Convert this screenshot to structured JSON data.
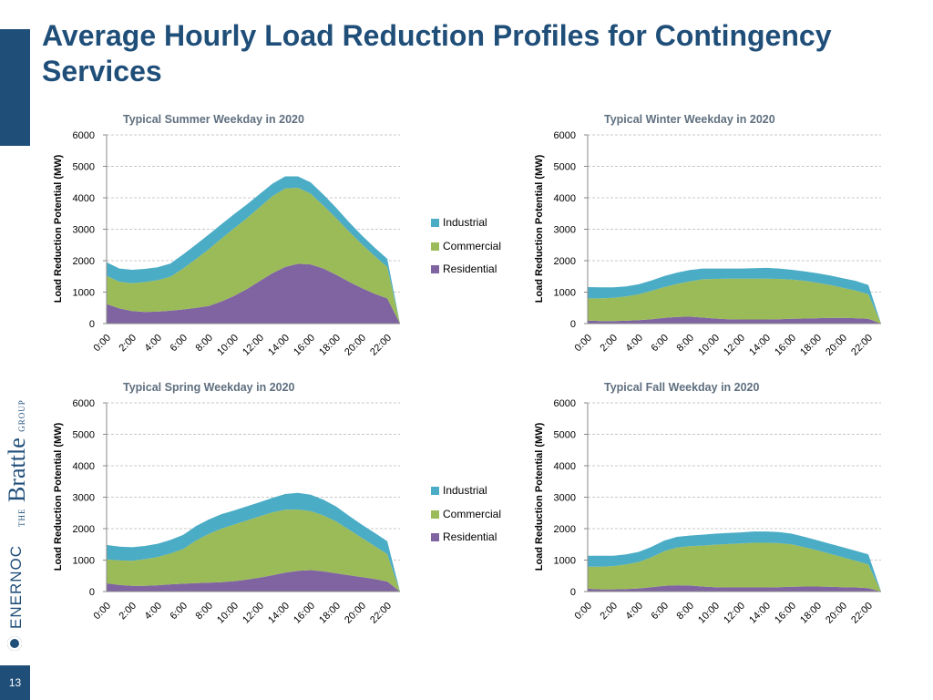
{
  "title": "Average Hourly Load Reduction Profiles for Contingency Services",
  "page_number": "13",
  "logos": {
    "brattle_the": "THE",
    "brattle": "Brattle",
    "brattle_group": "GROUP",
    "enernoc": "ENERNOC"
  },
  "colors": {
    "Industrial": "#4bacc6",
    "Commercial": "#9bbb59",
    "Residential": "#8064a2",
    "accent": "#1f4e79"
  },
  "legend": [
    "Industrial",
    "Commercial",
    "Residential"
  ],
  "chart_data": [
    {
      "type": "area",
      "stacked": true,
      "title": "Typical Summer Weekday in 2020",
      "ylabel": "Load Reduction Potential (MW)",
      "ylim": [
        0,
        6000
      ],
      "yticks": [
        0,
        1000,
        2000,
        3000,
        4000,
        5000,
        6000
      ],
      "x": [
        "0:00",
        "1:00",
        "2:00",
        "3:00",
        "4:00",
        "5:00",
        "6:00",
        "7:00",
        "8:00",
        "9:00",
        "10:00",
        "11:00",
        "12:00",
        "13:00",
        "14:00",
        "15:00",
        "16:00",
        "17:00",
        "18:00",
        "19:00",
        "20:00",
        "21:00",
        "22:00",
        "23:00"
      ],
      "xtick_labels": [
        "0:00",
        "2:00",
        "4:00",
        "6:00",
        "8:00",
        "10:00",
        "12:00",
        "14:00",
        "16:00",
        "18:00",
        "20:00",
        "22:00"
      ],
      "grid": true,
      "legend": "right",
      "series": [
        {
          "name": "Residential",
          "values": [
            620,
            480,
            400,
            370,
            380,
            410,
            450,
            500,
            560,
            700,
            880,
            1100,
            1350,
            1600,
            1800,
            1900,
            1880,
            1750,
            1550,
            1330,
            1130,
            950,
            800,
            0
          ]
        },
        {
          "name": "Commercial",
          "values": [
            900,
            850,
            880,
            950,
            1000,
            1080,
            1300,
            1550,
            1800,
            2000,
            2150,
            2250,
            2350,
            2450,
            2500,
            2420,
            2250,
            2000,
            1800,
            1600,
            1400,
            1200,
            1000,
            0
          ]
        },
        {
          "name": "Industrial",
          "values": [
            430,
            420,
            430,
            420,
            410,
            420,
            450,
            460,
            470,
            460,
            450,
            440,
            420,
            400,
            380,
            360,
            360,
            350,
            330,
            300,
            280,
            270,
            260,
            0
          ]
        }
      ]
    },
    {
      "type": "area",
      "stacked": true,
      "title": "Typical Winter Weekday in 2020",
      "ylabel": "Load Reduction Potential (MW)",
      "ylim": [
        0,
        6000
      ],
      "yticks": [
        0,
        1000,
        2000,
        3000,
        4000,
        5000,
        6000
      ],
      "x": [
        "0:00",
        "1:00",
        "2:00",
        "3:00",
        "4:00",
        "5:00",
        "6:00",
        "7:00",
        "8:00",
        "9:00",
        "10:00",
        "11:00",
        "12:00",
        "13:00",
        "14:00",
        "15:00",
        "16:00",
        "17:00",
        "18:00",
        "19:00",
        "20:00",
        "21:00",
        "22:00",
        "23:00"
      ],
      "xtick_labels": [
        "0:00",
        "2:00",
        "4:00",
        "6:00",
        "8:00",
        "10:00",
        "12:00",
        "14:00",
        "16:00",
        "18:00",
        "20:00",
        "22:00"
      ],
      "grid": true,
      "series": [
        {
          "name": "Residential",
          "values": [
            100,
            80,
            80,
            90,
            110,
            140,
            180,
            210,
            220,
            190,
            160,
            140,
            130,
            130,
            130,
            140,
            150,
            160,
            170,
            180,
            180,
            170,
            150,
            0
          ]
        },
        {
          "name": "Commercial",
          "values": [
            700,
            720,
            740,
            770,
            820,
            900,
            980,
            1050,
            1120,
            1220,
            1260,
            1290,
            1300,
            1300,
            1300,
            1280,
            1250,
            1200,
            1130,
            1050,
            960,
            880,
            780,
            0
          ]
        },
        {
          "name": "Industrial",
          "values": [
            360,
            350,
            330,
            320,
            320,
            330,
            350,
            360,
            360,
            340,
            330,
            320,
            320,
            330,
            340,
            330,
            310,
            300,
            300,
            300,
            300,
            310,
            300,
            0
          ]
        }
      ]
    },
    {
      "type": "area",
      "stacked": true,
      "title": "Typical Spring Weekday in 2020",
      "ylabel": "Load Reduction Potential (MW)",
      "ylim": [
        0,
        6000
      ],
      "yticks": [
        0,
        1000,
        2000,
        3000,
        4000,
        5000,
        6000
      ],
      "x": [
        "0:00",
        "1:00",
        "2:00",
        "3:00",
        "4:00",
        "5:00",
        "6:00",
        "7:00",
        "8:00",
        "9:00",
        "10:00",
        "11:00",
        "12:00",
        "13:00",
        "14:00",
        "15:00",
        "16:00",
        "17:00",
        "18:00",
        "19:00",
        "20:00",
        "21:00",
        "22:00",
        "23:00"
      ],
      "xtick_labels": [
        "0:00",
        "2:00",
        "4:00",
        "6:00",
        "8:00",
        "10:00",
        "12:00",
        "14:00",
        "16:00",
        "18:00",
        "20:00",
        "22:00"
      ],
      "grid": true,
      "legend": "right",
      "series": [
        {
          "name": "Residential",
          "values": [
            260,
            210,
            180,
            180,
            200,
            230,
            250,
            270,
            280,
            300,
            330,
            380,
            440,
            520,
            600,
            660,
            680,
            640,
            580,
            520,
            460,
            400,
            320,
            0
          ]
        },
        {
          "name": "Commercial",
          "values": [
            760,
            780,
            800,
            850,
            900,
            980,
            1100,
            1350,
            1550,
            1700,
            1800,
            1880,
            1950,
            2000,
            2000,
            1950,
            1880,
            1780,
            1650,
            1450,
            1250,
            1050,
            870,
            0
          ]
        },
        {
          "name": "Industrial",
          "values": [
            460,
            440,
            430,
            420,
            420,
            430,
            450,
            460,
            460,
            460,
            450,
            450,
            450,
            460,
            500,
            530,
            520,
            500,
            470,
            440,
            420,
            420,
            410,
            0
          ]
        }
      ]
    },
    {
      "type": "area",
      "stacked": true,
      "title": "Typical Fall Weekday in 2020",
      "ylabel": "Load Reduction Potential (MW)",
      "ylim": [
        0,
        6000
      ],
      "yticks": [
        0,
        1000,
        2000,
        3000,
        4000,
        5000,
        6000
      ],
      "x": [
        "0:00",
        "1:00",
        "2:00",
        "3:00",
        "4:00",
        "5:00",
        "6:00",
        "7:00",
        "8:00",
        "9:00",
        "10:00",
        "11:00",
        "12:00",
        "13:00",
        "14:00",
        "15:00",
        "16:00",
        "17:00",
        "18:00",
        "19:00",
        "20:00",
        "21:00",
        "22:00",
        "23:00"
      ],
      "xtick_labels": [
        "0:00",
        "2:00",
        "4:00",
        "6:00",
        "8:00",
        "10:00",
        "12:00",
        "14:00",
        "16:00",
        "18:00",
        "20:00",
        "22:00"
      ],
      "grid": true,
      "series": [
        {
          "name": "Residential",
          "values": [
            90,
            70,
            70,
            80,
            100,
            140,
            180,
            200,
            190,
            160,
            140,
            130,
            130,
            130,
            130,
            140,
            150,
            160,
            160,
            150,
            140,
            130,
            110,
            0
          ]
        },
        {
          "name": "Commercial",
          "values": [
            700,
            720,
            740,
            780,
            840,
            950,
            1100,
            1200,
            1250,
            1300,
            1350,
            1380,
            1400,
            1420,
            1420,
            1400,
            1350,
            1250,
            1150,
            1050,
            950,
            850,
            750,
            0
          ]
        },
        {
          "name": "Industrial",
          "values": [
            350,
            350,
            330,
            320,
            320,
            330,
            340,
            340,
            340,
            350,
            350,
            350,
            350,
            360,
            360,
            350,
            340,
            330,
            320,
            320,
            320,
            320,
            320,
            0
          ]
        }
      ]
    }
  ]
}
